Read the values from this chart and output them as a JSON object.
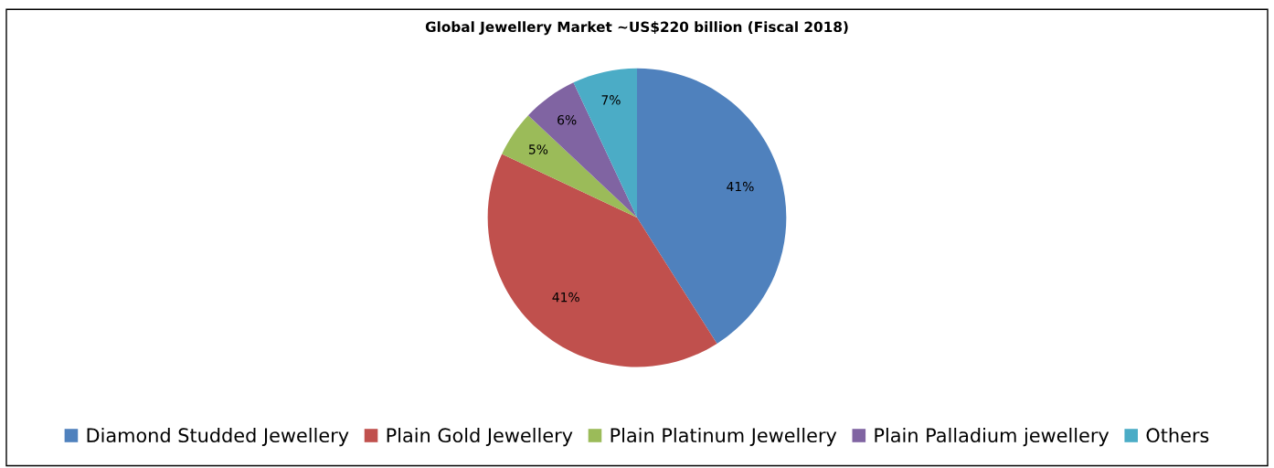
{
  "chart_data": {
    "type": "pie",
    "title": "Global Jewellery Market ~US$220 billion (Fiscal 2018)",
    "categories": [
      "Diamond Studded Jewellery",
      "Plain Gold Jewellery",
      "Plain Platinum Jewellery",
      "Plain Palladium jewellery",
      "Others"
    ],
    "values": [
      41,
      41,
      5,
      6,
      7
    ],
    "colors": [
      "#4f81bd",
      "#c0504d",
      "#9bbb59",
      "#8064a2",
      "#4bacc6"
    ],
    "value_labels": [
      "41%",
      "41%",
      "5%",
      "6%",
      "7%"
    ],
    "legend": "bottom"
  }
}
